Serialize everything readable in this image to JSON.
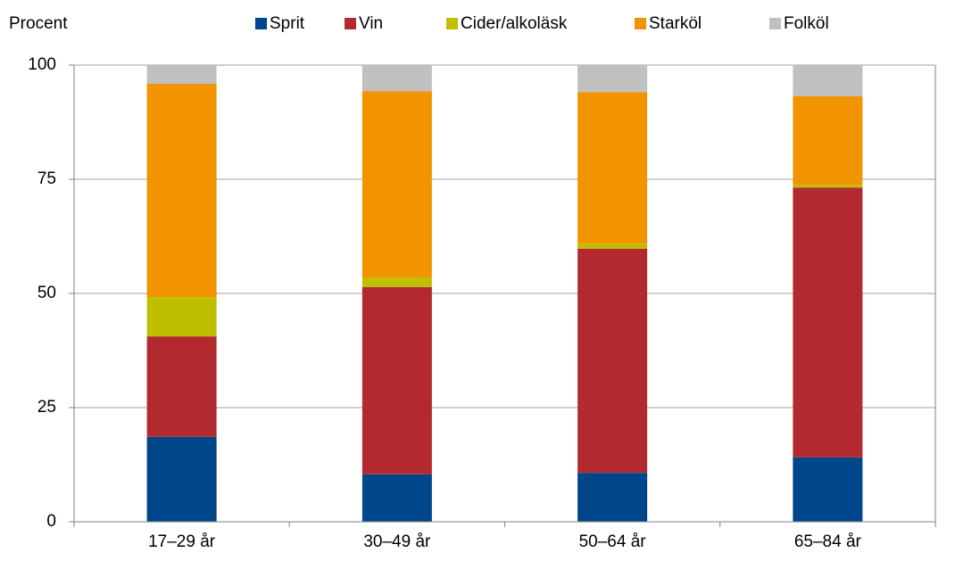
{
  "chart_data": {
    "type": "stacked-bar",
    "y_label": "Procent",
    "categories": [
      "17–29 år",
      "30–49 år",
      "50–64 år",
      "65–84 år"
    ],
    "series": [
      {
        "name": "Sprit",
        "color": "#00468b",
        "values": [
          18.6,
          10.4,
          10.7,
          14.1
        ]
      },
      {
        "name": "Vin",
        "color": "#b22a30",
        "values": [
          22.0,
          41.0,
          49.1,
          59.1
        ]
      },
      {
        "name": "Cider/alkoläsk",
        "color": "#bfbf00",
        "values": [
          8.6,
          2.1,
          1.1,
          0.6
        ]
      },
      {
        "name": "Starköl",
        "color": "#f29400",
        "values": [
          46.7,
          40.8,
          33.2,
          19.4
        ]
      },
      {
        "name": "Folköl",
        "color": "#c0c0c0",
        "values": [
          4.1,
          5.7,
          5.9,
          6.8
        ]
      }
    ],
    "ylim": [
      0,
      100
    ],
    "yticks": [
      0,
      25,
      50,
      75,
      100
    ],
    "grid": true
  }
}
